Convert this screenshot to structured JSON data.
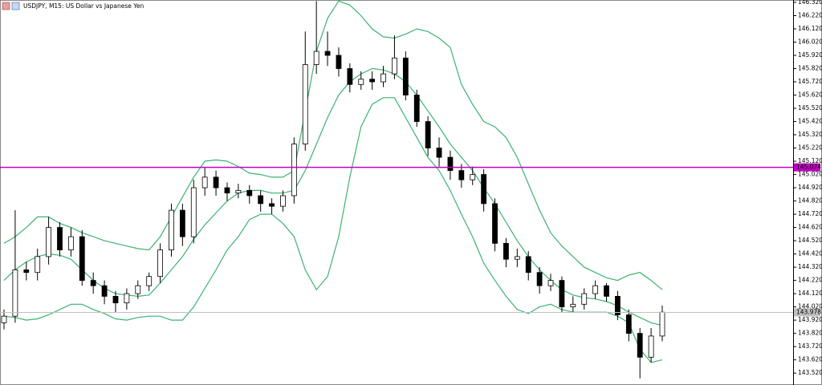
{
  "chart_data": {
    "type": "candlestick",
    "title": "USDJPY, M15:  US Dollar vs Japanese Yen",
    "ylim": [
      143.43,
      146.338
    ],
    "yticks": [
      {
        "value": 143.52,
        "label": "143.520"
      },
      {
        "value": 143.62,
        "label": "143.620"
      },
      {
        "value": 143.72,
        "label": "143.720"
      },
      {
        "value": 143.82,
        "label": "143.820"
      },
      {
        "value": 143.92,
        "label": "143.920"
      },
      {
        "value": 144.02,
        "label": "144.020"
      },
      {
        "value": 144.12,
        "label": "144.120"
      },
      {
        "value": 144.22,
        "label": "144.220"
      },
      {
        "value": 144.32,
        "label": "144.320"
      },
      {
        "value": 144.42,
        "label": "144.420"
      },
      {
        "value": 144.52,
        "label": "144.520"
      },
      {
        "value": 144.62,
        "label": "144.620"
      },
      {
        "value": 144.72,
        "label": "144.720"
      },
      {
        "value": 144.82,
        "label": "144.820"
      },
      {
        "value": 144.92,
        "label": "144.920"
      },
      {
        "value": 145.02,
        "label": "145.020"
      },
      {
        "value": 145.12,
        "label": "145.120"
      },
      {
        "value": 145.22,
        "label": "145.220"
      },
      {
        "value": 145.32,
        "label": "145.320"
      },
      {
        "value": 145.42,
        "label": "145.420"
      },
      {
        "value": 145.52,
        "label": "145.520"
      },
      {
        "value": 145.62,
        "label": "145.620"
      },
      {
        "value": 145.72,
        "label": "145.720"
      },
      {
        "value": 145.82,
        "label": "145.820"
      },
      {
        "value": 145.92,
        "label": "145.920"
      },
      {
        "value": 146.02,
        "label": "146.020"
      },
      {
        "value": 146.12,
        "label": "146.120"
      },
      {
        "value": 146.22,
        "label": "146.220"
      },
      {
        "value": 146.32,
        "label": "146.320"
      }
    ],
    "up_color": "#ffffff",
    "down_color": "#000000",
    "open": [
      143.9,
      143.95,
      144.3,
      144.28,
      144.4,
      144.62,
      144.45,
      144.55,
      144.22,
      144.18,
      144.1,
      144.05,
      144.12,
      144.18,
      144.25,
      144.45,
      144.75,
      144.55,
      144.92,
      145.0,
      144.92,
      144.88,
      144.9,
      144.86,
      144.8,
      144.78,
      144.86,
      145.25,
      145.85,
      145.95,
      145.92,
      145.82,
      145.7,
      145.74,
      145.72,
      145.78,
      145.9,
      145.62,
      145.42,
      145.22,
      145.15,
      145.05,
      144.98,
      145.02,
      144.8,
      144.5,
      144.38,
      144.4,
      144.28,
      144.18,
      144.22,
      144.02,
      144.04,
      144.12,
      144.18,
      144.1,
      143.96,
      143.82,
      143.64,
      143.8
    ],
    "high": [
      144.0,
      144.75,
      144.36,
      144.46,
      144.7,
      144.66,
      144.62,
      144.6,
      144.28,
      144.22,
      144.14,
      144.16,
      144.22,
      144.28,
      144.5,
      144.8,
      144.8,
      144.98,
      145.07,
      145.05,
      144.96,
      144.95,
      144.94,
      144.9,
      144.84,
      144.9,
      145.3,
      146.1,
      146.33,
      146.1,
      145.98,
      145.86,
      145.8,
      145.8,
      145.84,
      146.07,
      145.95,
      145.66,
      145.46,
      145.3,
      145.2,
      145.1,
      145.08,
      145.06,
      144.84,
      144.54,
      144.46,
      144.44,
      144.32,
      144.27,
      144.25,
      144.1,
      144.16,
      144.22,
      144.2,
      144.14,
      144.0,
      143.86,
      143.86,
      144.03
    ],
    "low": [
      143.85,
      143.9,
      144.22,
      144.22,
      144.34,
      144.4,
      144.4,
      144.18,
      144.12,
      144.04,
      143.98,
      144.0,
      144.08,
      144.14,
      144.2,
      144.4,
      144.48,
      144.5,
      144.86,
      144.86,
      144.82,
      144.84,
      144.8,
      144.74,
      144.72,
      144.74,
      144.8,
      145.2,
      145.78,
      145.84,
      145.76,
      145.64,
      145.66,
      145.66,
      145.68,
      145.74,
      145.58,
      145.38,
      145.16,
      145.08,
      144.98,
      144.92,
      144.94,
      144.74,
      144.44,
      144.32,
      144.32,
      144.22,
      144.12,
      144.14,
      143.98,
      143.98,
      144.0,
      144.08,
      144.06,
      143.92,
      143.76,
      143.48,
      143.6,
      143.76
    ],
    "close": [
      143.95,
      144.3,
      144.28,
      144.4,
      144.62,
      144.45,
      144.55,
      144.22,
      144.18,
      144.1,
      144.05,
      144.12,
      144.18,
      144.25,
      144.45,
      144.75,
      144.55,
      144.92,
      145.0,
      144.92,
      144.88,
      144.9,
      144.86,
      144.8,
      144.78,
      144.86,
      145.25,
      145.85,
      145.95,
      145.92,
      145.82,
      145.7,
      145.74,
      145.72,
      145.78,
      145.9,
      145.62,
      145.42,
      145.22,
      145.15,
      145.05,
      144.98,
      145.02,
      144.8,
      144.5,
      144.38,
      144.4,
      144.28,
      144.18,
      144.22,
      144.02,
      144.04,
      144.12,
      144.18,
      144.1,
      143.96,
      143.82,
      143.64,
      143.8,
      143.98
    ],
    "bands": [
      {
        "color": "#3cb371",
        "values": [
          144.5,
          144.55,
          144.62,
          144.7,
          144.7,
          144.65,
          144.62,
          144.58,
          144.55,
          144.52,
          144.5,
          144.48,
          144.46,
          144.45,
          144.55,
          144.7,
          144.85,
          145.0,
          145.12,
          145.13,
          145.12,
          145.08,
          145.03,
          145.02,
          145.0,
          145.0,
          145.05,
          145.5,
          145.95,
          146.2,
          146.33,
          146.3,
          146.22,
          146.12,
          146.06,
          146.05,
          146.08,
          146.12,
          146.1,
          146.05,
          145.98,
          145.7,
          145.55,
          145.42,
          145.38,
          145.3,
          145.15,
          144.95,
          144.75,
          144.58,
          144.48,
          144.4,
          144.32,
          144.28,
          144.24,
          144.22,
          144.26,
          144.28,
          144.22,
          144.15
        ]
      },
      {
        "color": "#3cb371",
        "values": [
          144.22,
          144.3,
          144.36,
          144.4,
          144.42,
          144.41,
          144.38,
          144.3,
          144.22,
          144.16,
          144.12,
          144.11,
          144.1,
          144.11,
          144.2,
          144.3,
          144.4,
          144.53,
          144.64,
          144.73,
          144.82,
          144.88,
          144.9,
          144.9,
          144.88,
          144.88,
          144.9,
          145.05,
          145.25,
          145.45,
          145.62,
          145.72,
          145.78,
          145.82,
          145.81,
          145.78,
          145.72,
          145.62,
          145.5,
          145.38,
          145.25,
          145.15,
          145.05,
          144.92,
          144.8,
          144.66,
          144.52,
          144.4,
          144.3,
          144.22,
          144.15,
          144.11,
          144.09,
          144.08,
          144.06,
          144.03,
          143.98,
          143.94,
          143.9,
          143.88
        ]
      },
      {
        "color": "#3cb371",
        "values": [
          143.95,
          143.94,
          143.92,
          143.93,
          143.96,
          144.0,
          144.04,
          144.04,
          144.0,
          143.97,
          143.93,
          143.92,
          143.94,
          143.95,
          143.95,
          143.92,
          143.92,
          144.02,
          144.16,
          144.3,
          144.45,
          144.55,
          144.68,
          144.72,
          144.72,
          144.65,
          144.55,
          144.3,
          144.15,
          144.25,
          144.55,
          145.0,
          145.38,
          145.55,
          145.6,
          145.6,
          145.45,
          145.3,
          145.15,
          145.05,
          144.9,
          144.72,
          144.55,
          144.35,
          144.22,
          144.1,
          144.0,
          143.97,
          144.02,
          144.04,
          144.0,
          143.98,
          143.98,
          143.98,
          143.98,
          143.95,
          143.9,
          143.7,
          143.6,
          143.62
        ]
      }
    ],
    "hlines": [
      {
        "value": 145.074,
        "label": "145.074",
        "color": "#c000c0"
      },
      {
        "value": 143.978,
        "label": "143.978",
        "color": "#c0c0c0"
      }
    ]
  }
}
